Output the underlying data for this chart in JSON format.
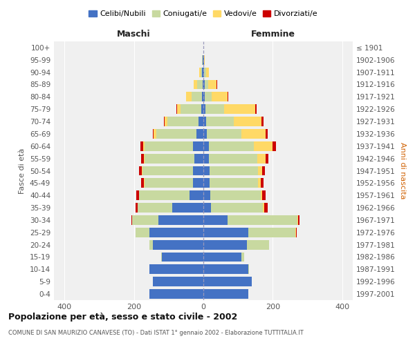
{
  "age_groups": [
    "0-4",
    "5-9",
    "10-14",
    "15-19",
    "20-24",
    "25-29",
    "30-34",
    "35-39",
    "40-44",
    "45-49",
    "50-54",
    "55-59",
    "60-64",
    "65-69",
    "70-74",
    "75-79",
    "80-84",
    "85-89",
    "90-94",
    "95-99",
    "100+"
  ],
  "birth_years": [
    "1997-2001",
    "1992-1996",
    "1987-1991",
    "1982-1986",
    "1977-1981",
    "1972-1976",
    "1967-1971",
    "1962-1966",
    "1957-1961",
    "1952-1956",
    "1947-1951",
    "1942-1946",
    "1937-1941",
    "1932-1936",
    "1927-1931",
    "1922-1926",
    "1917-1921",
    "1912-1916",
    "1907-1911",
    "1902-1906",
    "≤ 1901"
  ],
  "males": {
    "celibi": [
      155,
      145,
      155,
      120,
      145,
      155,
      130,
      90,
      40,
      30,
      30,
      25,
      30,
      20,
      13,
      5,
      4,
      2,
      3,
      1,
      0
    ],
    "coniugati": [
      0,
      0,
      0,
      2,
      10,
      40,
      75,
      100,
      145,
      140,
      145,
      145,
      140,
      115,
      90,
      60,
      30,
      15,
      5,
      2,
      0
    ],
    "vedovi": [
      0,
      0,
      0,
      0,
      0,
      0,
      0,
      0,
      1,
      1,
      2,
      2,
      4,
      8,
      8,
      10,
      15,
      10,
      4,
      1,
      0
    ],
    "divorziati": [
      0,
      0,
      0,
      0,
      0,
      1,
      2,
      5,
      8,
      8,
      8,
      8,
      7,
      3,
      3,
      2,
      0,
      1,
      0,
      0,
      0
    ]
  },
  "females": {
    "nubili": [
      130,
      140,
      130,
      110,
      125,
      130,
      70,
      22,
      20,
      18,
      18,
      15,
      15,
      10,
      8,
      5,
      4,
      3,
      2,
      1,
      0
    ],
    "coniugate": [
      0,
      0,
      2,
      8,
      65,
      135,
      200,
      150,
      145,
      140,
      140,
      140,
      130,
      100,
      80,
      55,
      20,
      10,
      5,
      1,
      0
    ],
    "vedove": [
      0,
      0,
      0,
      0,
      0,
      2,
      2,
      3,
      5,
      8,
      12,
      25,
      55,
      70,
      80,
      90,
      45,
      25,
      8,
      2,
      0
    ],
    "divorziate": [
      0,
      0,
      0,
      0,
      0,
      2,
      5,
      10,
      10,
      8,
      8,
      8,
      10,
      5,
      5,
      3,
      2,
      1,
      0,
      0,
      0
    ]
  },
  "colors": {
    "celibi": "#4472C4",
    "coniugati": "#c8d9a0",
    "vedovi": "#FFD966",
    "divorziati": "#CC0000"
  },
  "xlim": 430,
  "title": "Popolazione per età, sesso e stato civile - 2002",
  "subtitle": "COMUNE DI SAN MAURIZIO CANAVESE (TO) - Dati ISTAT 1° gennaio 2002 - Elaborazione TUTTITALIA.IT",
  "ylabel_left": "Fasce di età",
  "ylabel_right": "Anni di nascita",
  "xlabel_maschi": "Maschi",
  "xlabel_femmine": "Femmine",
  "legend_labels": [
    "Celibi/Nubili",
    "Coniugati/e",
    "Vedovi/e",
    "Divorziati/e"
  ],
  "bg_color": "#f0f0f0",
  "grid_color": "#ffffff"
}
